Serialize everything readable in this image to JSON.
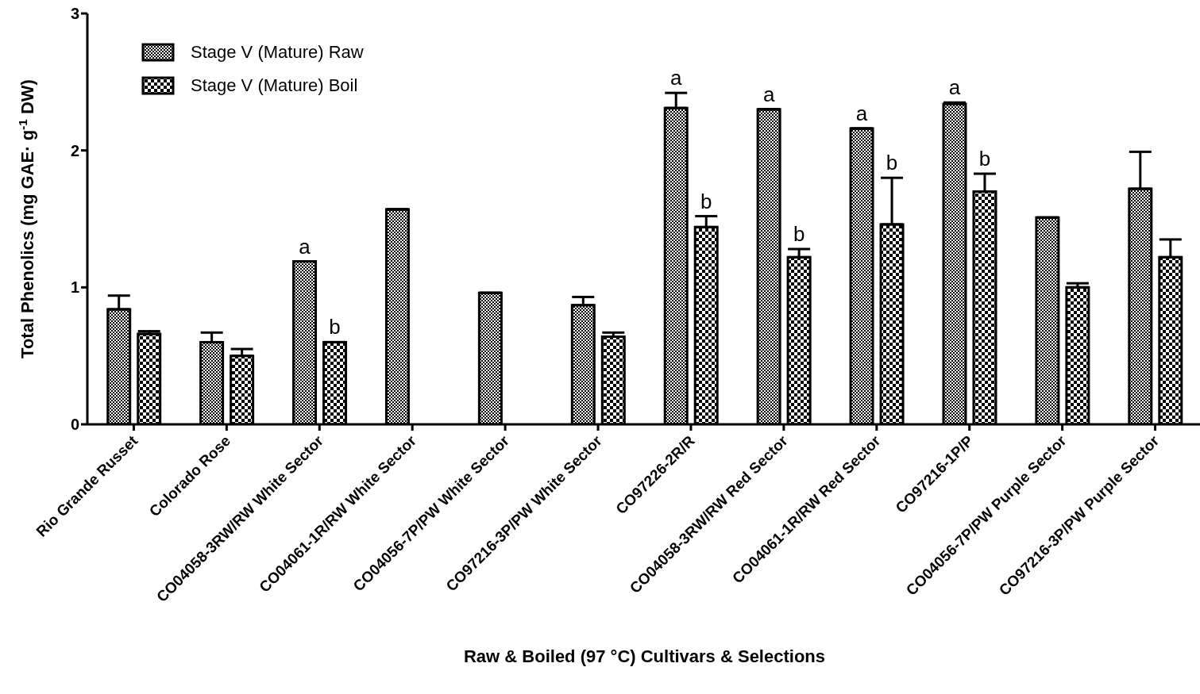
{
  "chart_data": {
    "type": "bar",
    "xlabel": "Raw & Boiled (97 °C) Cultivars & Selections",
    "ylabel": "Total Phenolics (mg GAE· g$^{-1}$ DW)",
    "categories": [
      "Rio Grande Russet",
      "Colorado Rose",
      "CO04058-3RW/RW White Sector",
      "CO04061-1R/RW White Sector",
      "CO04056-7P/PW White Sector",
      "CO97216-3P/PW White Sector",
      "CO97226-2R/R",
      "CO04058-3RW/RW Red Sector",
      "CO04061-1R/RW Red Sector",
      "CO97216-1P/P",
      "CO04056-7P/PW Purple Sector",
      "CO97216-3P/PW Purple Sector"
    ],
    "series": [
      {
        "name": "Stage V (Mature) Raw",
        "color": "#000000",
        "values": [
          0.84,
          0.6,
          1.19,
          1.57,
          0.96,
          0.87,
          2.31,
          2.3,
          2.16,
          2.34,
          1.51,
          1.72
        ],
        "errors": [
          [
            0.84,
            0.94
          ],
          [
            0.6,
            0.67
          ],
          null,
          null,
          null,
          [
            0.87,
            0.93
          ],
          [
            2.31,
            2.42
          ],
          null,
          null,
          [
            2.34,
            2.35
          ],
          null,
          [
            1.72,
            1.99
          ]
        ]
      },
      {
        "name": "Stage V (Mature) Boil",
        "color": "#000000",
        "values": [
          0.66,
          0.5,
          0.6,
          null,
          null,
          0.64,
          1.44,
          1.22,
          1.46,
          1.7,
          1.0,
          1.22
        ],
        "errors": [
          [
            0.66,
            0.68
          ],
          [
            0.5,
            0.55
          ],
          null,
          null,
          null,
          [
            0.64,
            0.67
          ],
          [
            1.44,
            1.52
          ],
          [
            1.22,
            1.28
          ],
          [
            1.46,
            1.8
          ],
          [
            1.7,
            1.83
          ],
          [
            1.0,
            1.03
          ],
          [
            1.22,
            1.35
          ]
        ]
      }
    ],
    "annotations": [
      {
        "text": "a",
        "x": "CO04058-3RW/RW White Sector",
        "y": 1.19
      },
      {
        "text": "b",
        "x": "CO04058-3RW/RW White Sector",
        "y": 0.6
      },
      {
        "text": "a",
        "x": "CO97226-2R/R",
        "y": 2.42
      },
      {
        "text": "b",
        "x": "CO97226-2R/R",
        "y": 1.52
      },
      {
        "text": "a",
        "x": "CO04058-3RW/RW Red Sector",
        "y": 2.3
      },
      {
        "text": "b",
        "x": "CO04058-3RW/RW Red Sector",
        "y": 1.28
      },
      {
        "text": "a",
        "x": "CO04061-1R/RW Red Sector",
        "y": 2.16
      },
      {
        "text": "b",
        "x": "CO04061-1R/RW Red Sector",
        "y": 1.8
      },
      {
        "text": "a",
        "x": "CO97216-1P/P",
        "y": 2.35
      },
      {
        "text": "b",
        "x": "CO97216-1P/P",
        "y": 1.83
      }
    ],
    "ylim": [
      0,
      3
    ],
    "yticks": [
      0,
      1,
      2,
      3
    ],
    "grid": false,
    "legend": "top left"
  }
}
